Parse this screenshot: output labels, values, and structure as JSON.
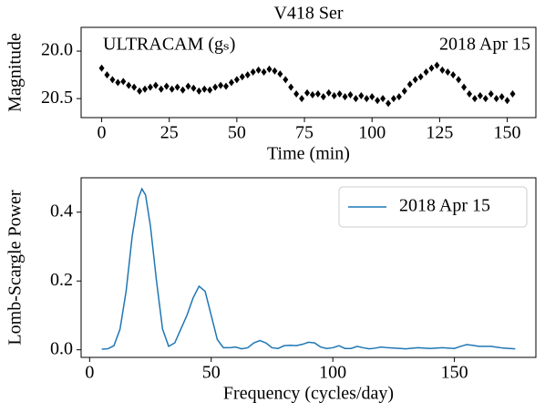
{
  "chart_data": [
    {
      "type": "scatter",
      "title": "V418 Ser",
      "xlabel": "Time (min)",
      "ylabel": "Magnitude",
      "annotations": [
        "ULTRACAM (gₛ)",
        "2018 Apr 15"
      ],
      "color": "#000000",
      "x": [
        0,
        2,
        4,
        6,
        8,
        10,
        12,
        14,
        16,
        18,
        20,
        22,
        24,
        26,
        28,
        30,
        32,
        34,
        36,
        38,
        40,
        42,
        44,
        46,
        48,
        50,
        52,
        54,
        56,
        58,
        60,
        62,
        64,
        66,
        68,
        70,
        72,
        74,
        76,
        78,
        80,
        82,
        84,
        86,
        88,
        90,
        92,
        94,
        96,
        98,
        100,
        102,
        104,
        106,
        108,
        110,
        112,
        114,
        116,
        118,
        120,
        122,
        124,
        126,
        128,
        130,
        132,
        134,
        136,
        138,
        140,
        142,
        144,
        146,
        148,
        150,
        152
      ],
      "values": [
        20.18,
        20.25,
        20.3,
        20.33,
        20.32,
        20.36,
        20.38,
        20.42,
        20.4,
        20.38,
        20.36,
        20.4,
        20.37,
        20.4,
        20.38,
        20.41,
        20.37,
        20.39,
        20.42,
        20.4,
        20.41,
        20.38,
        20.36,
        20.37,
        20.33,
        20.3,
        20.27,
        20.25,
        20.22,
        20.2,
        20.22,
        20.19,
        20.21,
        20.24,
        20.3,
        20.38,
        20.45,
        20.5,
        20.44,
        20.46,
        20.45,
        20.48,
        20.44,
        20.47,
        20.45,
        20.48,
        20.46,
        20.5,
        20.47,
        20.5,
        20.48,
        20.52,
        20.5,
        20.55,
        20.5,
        20.48,
        20.42,
        20.35,
        20.3,
        20.27,
        20.22,
        20.18,
        20.15,
        20.2,
        20.22,
        20.25,
        20.3,
        20.38,
        20.45,
        20.5,
        20.47,
        20.5,
        20.45,
        20.5,
        20.48,
        20.52,
        20.45
      ],
      "xlim": [
        -7.6,
        160.6
      ],
      "ylim": [
        20.7,
        19.75
      ],
      "xticks": [
        0,
        25,
        50,
        75,
        100,
        125,
        150
      ],
      "yticks": [
        {
          "value": 20,
          "label": "20.0"
        },
        20.5
      ]
    },
    {
      "type": "line",
      "xlabel": "Frequency (cycles/day)",
      "ylabel": "Lomb-Scargle Power",
      "legend": "upper right",
      "x": [
        5,
        7.5,
        10,
        12.5,
        15,
        17.5,
        20,
        21.5,
        23,
        25,
        27.5,
        30,
        32.5,
        35,
        37.5,
        40,
        42.5,
        45,
        47.5,
        50,
        52.5,
        55,
        57.5,
        60,
        62.5,
        65,
        67.5,
        70,
        72.5,
        75,
        77.5,
        80,
        82.5,
        85,
        87.5,
        90,
        92.5,
        95,
        97.5,
        100,
        102.5,
        105,
        107.5,
        110,
        112.5,
        115,
        117.5,
        120,
        122.5,
        125,
        130,
        135,
        140,
        145,
        150,
        152.5,
        155,
        157.5,
        160,
        165,
        170,
        175
      ],
      "series": [
        {
          "name": "2018 Apr 15",
          "color": "#1f77b4",
          "values": [
            0.002,
            0.003,
            0.012,
            0.06,
            0.17,
            0.33,
            0.44,
            0.468,
            0.45,
            0.36,
            0.2,
            0.06,
            0.01,
            0.02,
            0.06,
            0.1,
            0.15,
            0.185,
            0.17,
            0.1,
            0.03,
            0.006,
            0.006,
            0.008,
            0.003,
            0.006,
            0.02,
            0.027,
            0.02,
            0.006,
            0.004,
            0.012,
            0.013,
            0.012,
            0.016,
            0.022,
            0.02,
            0.008,
            0.004,
            0.006,
            0.012,
            0.004,
            0.004,
            0.01,
            0.006,
            0.003,
            0.005,
            0.008,
            0.006,
            0.005,
            0.003,
            0.006,
            0.004,
            0.006,
            0.004,
            0.01,
            0.015,
            0.013,
            0.01,
            0.01,
            0.005,
            0.003
          ]
        }
      ],
      "xlim": [
        -3.5,
        183.5
      ],
      "ylim": [
        -0.022,
        0.5
      ],
      "xticks": [
        0,
        50,
        100,
        150
      ],
      "yticks": [
        {
          "value": 0,
          "label": "0.0"
        },
        {
          "value": 0.2,
          "label": "0.2"
        },
        {
          "value": 0.4,
          "label": "0.4"
        }
      ]
    }
  ]
}
